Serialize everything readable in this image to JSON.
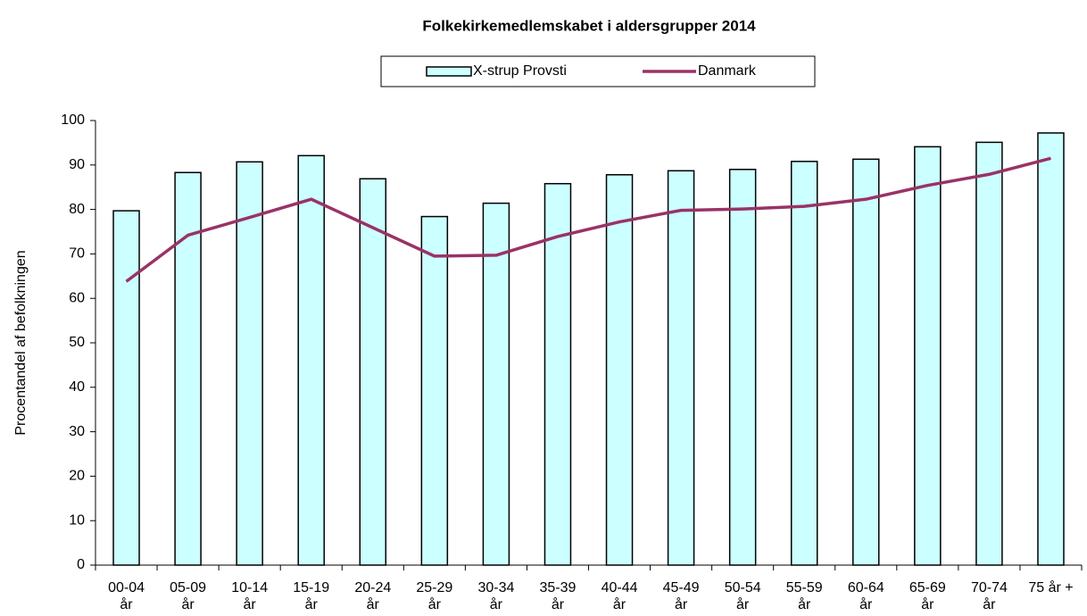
{
  "chart_data": {
    "type": "bar-line",
    "title": "Folkekirkemedlemskabet i aldersgrupper 2014",
    "y_label": "Procentandel af befolkningen",
    "categories": [
      "00-04 år",
      "05-09 år",
      "10-14 år",
      "15-19 år",
      "20-24 år",
      "25-29 år",
      "30-34 år",
      "35-39 år",
      "40-44 år",
      "45-49 år",
      "50-54 år",
      "55-59 år",
      "60-64 år",
      "65-69 år",
      "70-74 år",
      "75 år +"
    ],
    "series": [
      {
        "name": "X-strup Provsti",
        "type": "bar",
        "color": "#ccffff",
        "values": [
          79.7,
          88.3,
          90.7,
          92.1,
          86.9,
          78.4,
          81.4,
          85.8,
          87.8,
          88.7,
          89.0,
          90.8,
          91.3,
          94.1,
          95.1,
          97.2
        ]
      },
      {
        "name": "Danmark",
        "type": "line",
        "color": "#993366",
        "values": [
          63.8,
          74.2,
          78.2,
          82.3,
          75.9,
          69.5,
          69.7,
          73.9,
          77.2,
          79.8,
          80.1,
          80.7,
          82.3,
          85.4,
          87.9,
          91.5
        ]
      }
    ],
    "ylim": [
      0,
      100
    ],
    "yticks": [
      0,
      10,
      20,
      30,
      40,
      50,
      60,
      70,
      80,
      90,
      100
    ],
    "grid": false
  }
}
